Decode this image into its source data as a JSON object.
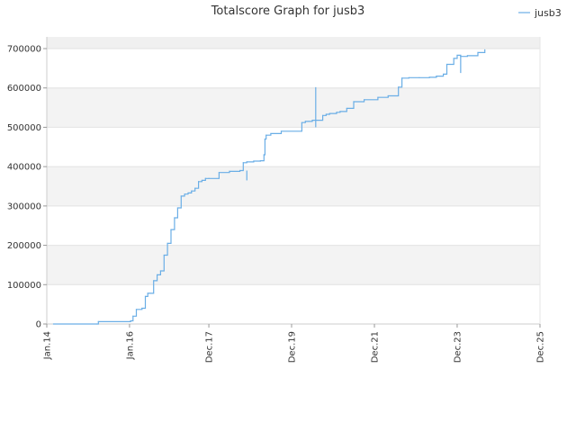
{
  "chart_data": {
    "type": "line",
    "title": "Totalscore Graph for jusb3",
    "xlabel": "",
    "ylabel": "",
    "x_ticks": [
      "Jan.14",
      "Jan.16",
      "Dec.17",
      "Dec.19",
      "Dec.21",
      "Dec.23",
      "Dec.25"
    ],
    "x_tick_dates": [
      "2014-01-01",
      "2016-01-01",
      "2017-12-01",
      "2019-12-01",
      "2021-12-01",
      "2023-12-01",
      "2025-12-01"
    ],
    "xlim": [
      "2014-01-01",
      "2025-12-01"
    ],
    "y_ticks": [
      "0",
      "100000",
      "200000",
      "300000",
      "400000",
      "500000",
      "600000",
      "700000"
    ],
    "ylim": [
      0,
      700000
    ],
    "grid": true,
    "legend": {
      "position": "top-right"
    },
    "series": [
      {
        "name": "jusb3",
        "color": "#6aaee6",
        "x": [
          "2014-03-01",
          "2015-03-20",
          "2015-04-01",
          "2016-01-10",
          "2016-02-01",
          "2016-03-01",
          "2016-04-20",
          "2016-05-20",
          "2016-06-10",
          "2016-07-01",
          "2016-08-01",
          "2016-09-01",
          "2016-10-01",
          "2016-11-01",
          "2016-12-01",
          "2017-01-01",
          "2017-02-01",
          "2017-03-01",
          "2017-04-01",
          "2017-05-01",
          "2017-06-01",
          "2017-07-01",
          "2017-08-01",
          "2017-09-01",
          "2017-10-01",
          "2017-11-01",
          "2017-12-01",
          "2018-03-01",
          "2018-06-01",
          "2018-09-01",
          "2018-10-01",
          "2018-11-01",
          "2019-01-01",
          "2019-03-01",
          "2019-04-01",
          "2019-04-10",
          "2019-04-20",
          "2019-06-01",
          "2019-09-01",
          "2020-03-01",
          "2020-04-01",
          "2020-05-01",
          "2020-06-01",
          "2020-09-01",
          "2020-10-01",
          "2020-11-01",
          "2021-01-01",
          "2021-02-01",
          "2021-04-01",
          "2021-06-01",
          "2021-09-01",
          "2022-01-01",
          "2022-04-01",
          "2022-07-01",
          "2022-08-01",
          "2022-10-01",
          "2023-01-01",
          "2023-04-01",
          "2023-06-01",
          "2023-08-01",
          "2023-09-01",
          "2023-11-01",
          "2023-12-01",
          "2024-01-01",
          "2024-03-01",
          "2024-06-01",
          "2024-08-01"
        ],
        "values": [
          0,
          0,
          6000,
          8000,
          20000,
          37000,
          40000,
          70000,
          78000,
          78000,
          110000,
          125000,
          135000,
          175000,
          205000,
          240000,
          270000,
          295000,
          325000,
          330000,
          333000,
          338000,
          345000,
          362000,
          365000,
          370000,
          370000,
          385000,
          388000,
          390000,
          410000,
          412000,
          414000,
          415000,
          430000,
          470000,
          480000,
          484000,
          490000,
          512000,
          515000,
          515000,
          518000,
          530000,
          533000,
          535000,
          538000,
          540000,
          548000,
          565000,
          570000,
          576000,
          580000,
          602000,
          625000,
          626000,
          626000,
          627000,
          630000,
          635000,
          660000,
          675000,
          683000,
          680000,
          682000,
          690000,
          697000
        ]
      }
    ],
    "annotations": []
  }
}
